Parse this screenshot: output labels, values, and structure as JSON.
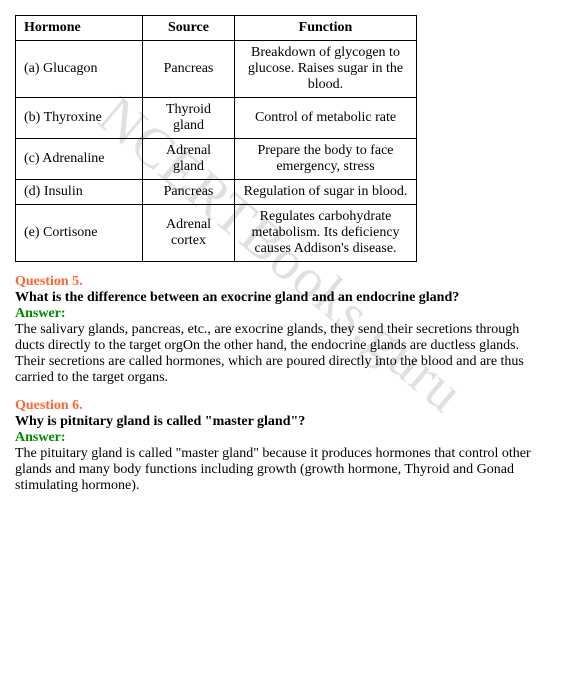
{
  "watermark": "NCERTBooks.guru",
  "table": {
    "headers": [
      "Hormone",
      "Source",
      "Function"
    ],
    "rows": [
      {
        "hormone": "(a) Glucagon",
        "source": "Pancreas",
        "function": "Breakdown of glycogen to glucose. Raises sugar in the blood."
      },
      {
        "hormone": "(b) Thyroxine",
        "source": "Thyroid gland",
        "function": "Control of metabolic rate"
      },
      {
        "hormone": "(c) Adrenaline",
        "source": "Adrenal gland",
        "function": "Prepare the body to face emergency, stress"
      },
      {
        "hormone": "(d) Insulin",
        "source": "Pancreas",
        "function": "Regulation of sugar in blood."
      },
      {
        "hormone": "(e) Cortisone",
        "source": "Adrenal cortex",
        "function": "Regulates carbohydrate metabolism. Its deficiency causes Addison's disease."
      }
    ]
  },
  "questions": [
    {
      "number": "Question 5.",
      "text": "What is the difference between an exocrine gland and an endocrine gland?",
      "answer_label": "Answer:",
      "answer": "The salivary glands, pancreas, etc., are exocrine glands, they send their secretions through ducts directly to the target orgOn the other hand, the endocrine glands are ductless glands. Their secretions are called hormones, which are poured directly into the blood and are thus carried to the target organs."
    },
    {
      "number": "Question 6.",
      "text": "Why is pitnitary gland is called \"master gland\"?",
      "answer_label": "Answer:",
      "answer": "The pituitary gland is called \"master gland\" because it produces hormones that control other glands and many body functions including growth (growth hormone, Thyroid and Gonad stimulating hormone)."
    }
  ]
}
